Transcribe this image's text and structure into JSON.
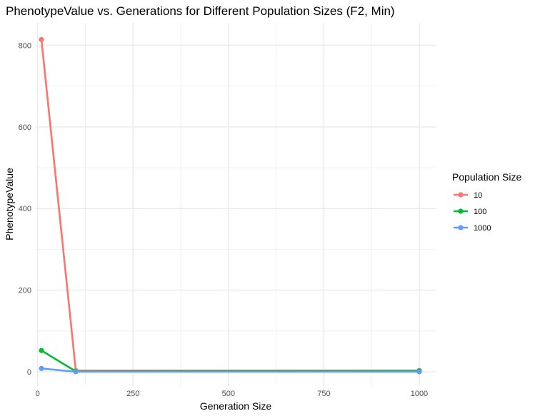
{
  "chart_data": {
    "type": "line",
    "title": "PhenotypeValue vs. Generations for Different Population Sizes (F2, Min)",
    "xlabel": "Generation Size",
    "ylabel": "PhenotypeValue",
    "x": [
      10,
      100,
      1000
    ],
    "xlim": [
      -5,
      1045
    ],
    "ylim": [
      -35,
      855
    ],
    "x_ticks": [
      0,
      250,
      500,
      750,
      1000
    ],
    "x_tick_labels": [
      "0",
      "250",
      "500",
      "750",
      "1000"
    ],
    "y_ticks": [
      0,
      200,
      400,
      600,
      800
    ],
    "y_tick_labels": [
      "0",
      "200",
      "400",
      "600",
      "800"
    ],
    "grid": true,
    "legend": {
      "title": "Population Size",
      "position": "right"
    },
    "series": [
      {
        "name": "10",
        "color": "#F8766D",
        "values": [
          814,
          3,
          3
        ]
      },
      {
        "name": "100",
        "color": "#00BA38",
        "values": [
          52,
          1,
          2
        ]
      },
      {
        "name": "1000",
        "color": "#619CFF",
        "values": [
          8,
          0,
          0
        ]
      }
    ]
  }
}
